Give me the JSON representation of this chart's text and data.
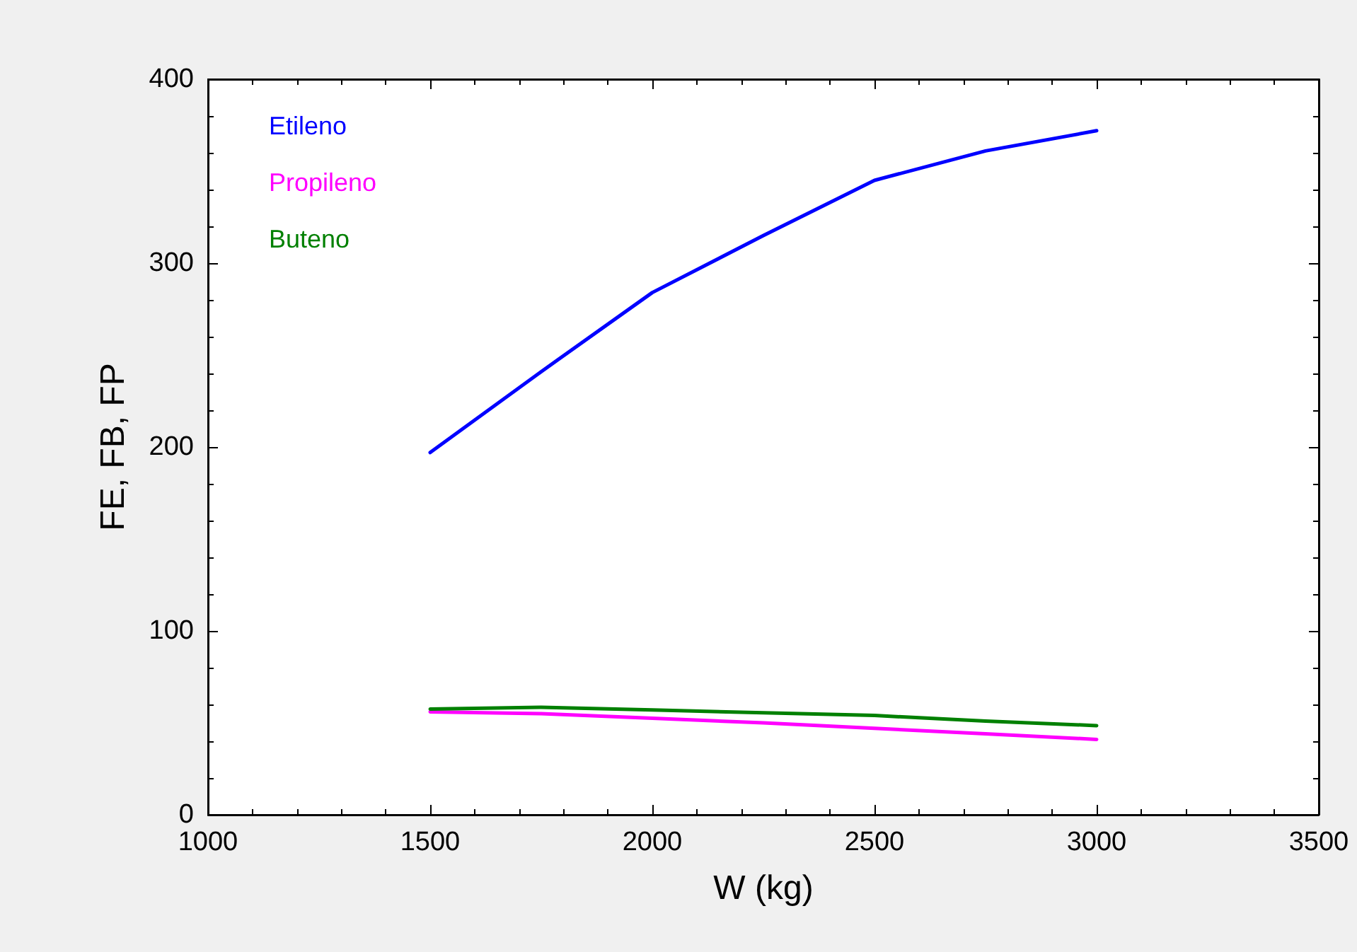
{
  "chart_data": {
    "type": "line",
    "xlabel": "W (kg)",
    "ylabel": "FE, FB, FP",
    "x": [
      1500,
      1750,
      2000,
      2250,
      2500,
      2750,
      3000
    ],
    "series": [
      {
        "name": "Etileno",
        "color": "#0000ff",
        "values": [
          197,
          241,
          284,
          315,
          345,
          361,
          372
        ]
      },
      {
        "name": "Propileno",
        "color": "#ff00ff",
        "values": [
          56,
          55,
          52.5,
          50,
          47,
          44,
          41
        ]
      },
      {
        "name": "Buteno",
        "color": "#008000",
        "values": [
          57.5,
          58.5,
          57,
          55.5,
          54,
          51,
          48.5
        ]
      }
    ],
    "xlim": [
      1000,
      3500
    ],
    "xticks": [
      1000,
      1500,
      2000,
      2500,
      3000,
      3500
    ],
    "ylim": [
      0,
      400
    ],
    "yticks": [
      0,
      100,
      200,
      300,
      400
    ],
    "grid": false,
    "legend": "top left",
    "marker": "none",
    "line_style": "solid"
  }
}
